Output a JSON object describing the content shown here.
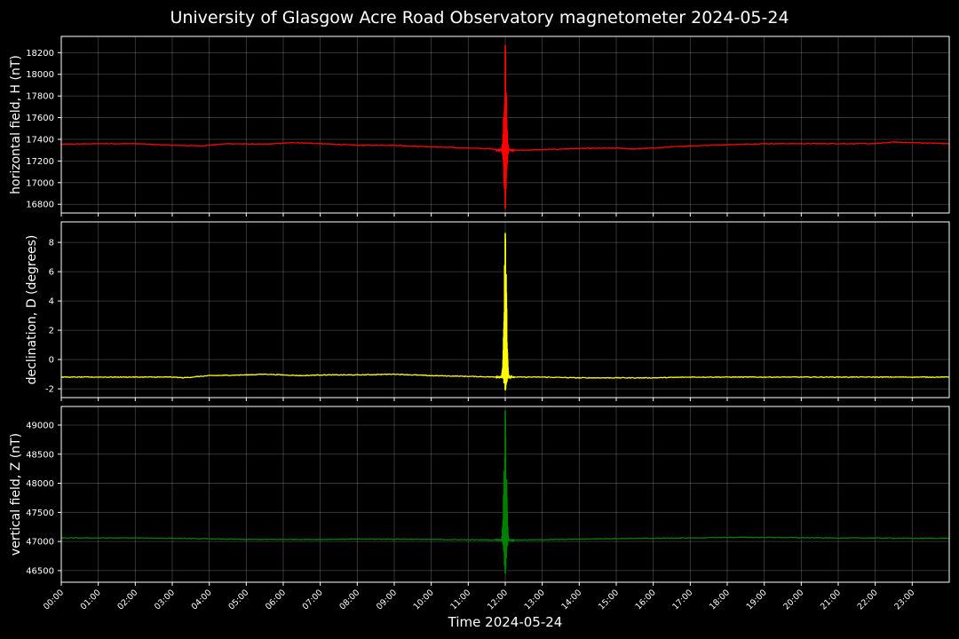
{
  "title": "University of Glasgow Acre Road Observatory magnetometer 2024-05-24",
  "xlabel": "Time 2024-05-24",
  "time_ticks": [
    "00:00",
    "01:00",
    "02:00",
    "03:00",
    "04:00",
    "05:00",
    "06:00",
    "07:00",
    "08:00",
    "09:00",
    "10:00",
    "11:00",
    "12:00",
    "13:00",
    "14:00",
    "15:00",
    "16:00",
    "17:00",
    "18:00",
    "19:00",
    "20:00",
    "21:00",
    "22:00",
    "23:00"
  ],
  "chart_data": [
    {
      "type": "line",
      "ylabel": "horizontal field, H (nT)",
      "color": "#ff0000",
      "ylim": [
        16720,
        18350
      ],
      "yticks": [
        16800,
        17000,
        17200,
        17400,
        17600,
        17800,
        18000,
        18200
      ],
      "xlim_hours": [
        0,
        24
      ],
      "grid": true,
      "series": [
        {
          "x_hours": [
            0,
            1,
            2,
            3,
            3.8,
            4.5,
            5.5,
            6.3,
            7,
            8,
            9,
            10,
            11,
            11.7,
            12.1,
            12.5,
            13,
            14,
            15,
            15.5,
            16,
            17,
            18,
            19,
            20,
            21,
            22,
            22.5,
            23,
            24
          ],
          "values": [
            17355,
            17360,
            17360,
            17345,
            17340,
            17360,
            17355,
            17370,
            17360,
            17345,
            17345,
            17330,
            17320,
            17310,
            17300,
            17300,
            17305,
            17315,
            17320,
            17310,
            17320,
            17340,
            17350,
            17360,
            17360,
            17360,
            17360,
            17375,
            17370,
            17360
          ]
        }
      ],
      "spike": {
        "center_hours": 12.0,
        "max": 18270,
        "min": 16760
      }
    },
    {
      "type": "line",
      "ylabel": "declination, D (degrees)",
      "color": "#ffff00",
      "ylim": [
        -2.6,
        9.4
      ],
      "yticks": [
        -2,
        0,
        2,
        4,
        6,
        8
      ],
      "xlim_hours": [
        0,
        24
      ],
      "grid": true,
      "series": [
        {
          "x_hours": [
            0,
            1,
            2,
            3,
            3.3,
            4,
            5,
            5.5,
            6,
            6.5,
            7,
            8,
            9,
            10,
            11,
            11.8,
            12.2,
            13,
            14,
            15,
            16,
            17,
            18,
            19,
            20,
            21,
            22,
            23,
            24
          ],
          "values": [
            -1.2,
            -1.2,
            -1.2,
            -1.2,
            -1.25,
            -1.1,
            -1.05,
            -1.0,
            -1.05,
            -1.1,
            -1.05,
            -1.05,
            -1.0,
            -1.1,
            -1.15,
            -1.2,
            -1.2,
            -1.2,
            -1.25,
            -1.25,
            -1.25,
            -1.2,
            -1.2,
            -1.2,
            -1.2,
            -1.2,
            -1.2,
            -1.2,
            -1.2
          ]
        }
      ],
      "spike": {
        "center_hours": 12.0,
        "max": 8.6,
        "min": -2.1
      }
    },
    {
      "type": "line",
      "ylabel": "vertical field, Z (nT)",
      "color": "#008000",
      "ylim": [
        46300,
        49320
      ],
      "yticks": [
        46500,
        47000,
        47500,
        48000,
        48500,
        49000
      ],
      "xlim_hours": [
        0,
        24
      ],
      "grid": true,
      "series": [
        {
          "x_hours": [
            0,
            2,
            3,
            4,
            5,
            6,
            7,
            8,
            9,
            10,
            11,
            12,
            13,
            14,
            15,
            16,
            17,
            18,
            19,
            20,
            21,
            22,
            23,
            24
          ],
          "values": [
            47060,
            47060,
            47055,
            47045,
            47035,
            47035,
            47035,
            47040,
            47040,
            47035,
            47030,
            47025,
            47030,
            47040,
            47050,
            47055,
            47060,
            47070,
            47070,
            47065,
            47060,
            47060,
            47055,
            47055
          ]
        }
      ],
      "spike": {
        "center_hours": 12.0,
        "max": 49250,
        "min": 46450
      }
    }
  ]
}
